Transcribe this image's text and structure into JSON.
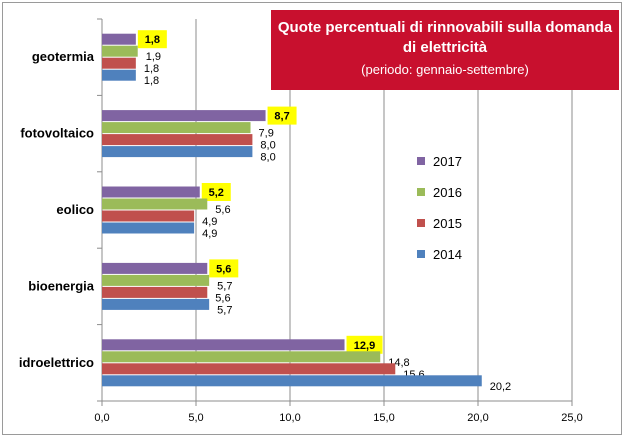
{
  "chart_data": {
    "type": "bar",
    "orientation": "horizontal",
    "title": "Quote percentuali di rinnovabili sulla domanda di elettricità",
    "subtitle": "(periodo:  gennaio-settembre)",
    "categories": [
      "geotermia",
      "fotovoltaico",
      "eolico",
      "bioenergia",
      "idroelettrico"
    ],
    "series": [
      {
        "name": "2017",
        "color": "#8064a2",
        "values": [
          1.8,
          8.7,
          5.2,
          5.6,
          12.9
        ],
        "labels": [
          "1,8",
          "8,7",
          "5,2",
          "5,6",
          "12,9"
        ],
        "highlighted_labels": true
      },
      {
        "name": "2016",
        "color": "#9bbb59",
        "values": [
          1.9,
          7.9,
          5.6,
          5.7,
          14.8
        ],
        "labels": [
          "1,9",
          "7,9",
          "5,6",
          "5,7",
          "14,8"
        ]
      },
      {
        "name": "2015",
        "color": "#c0504d",
        "values": [
          1.8,
          8.0,
          4.9,
          5.6,
          15.6
        ],
        "labels": [
          "1,8",
          "8,0",
          "4,9",
          "5,6",
          "15,6"
        ]
      },
      {
        "name": "2014",
        "color": "#4f81bd",
        "values": [
          1.8,
          8.0,
          4.9,
          5.7,
          20.2
        ],
        "labels": [
          "1,8",
          "8,0",
          "4,9",
          "5,7",
          "20,2"
        ]
      }
    ],
    "xlim": [
      0,
      25
    ],
    "xticks": [
      "0,0",
      "5,0",
      "10,0",
      "15,0",
      "20,0",
      "25,0"
    ],
    "xtick_values": [
      0,
      5,
      10,
      15,
      20,
      25
    ],
    "grid": "vertical",
    "legend_placement": "right",
    "highlight_color": "#ffff00"
  },
  "colors": {
    "title_background": "#c8102e"
  }
}
